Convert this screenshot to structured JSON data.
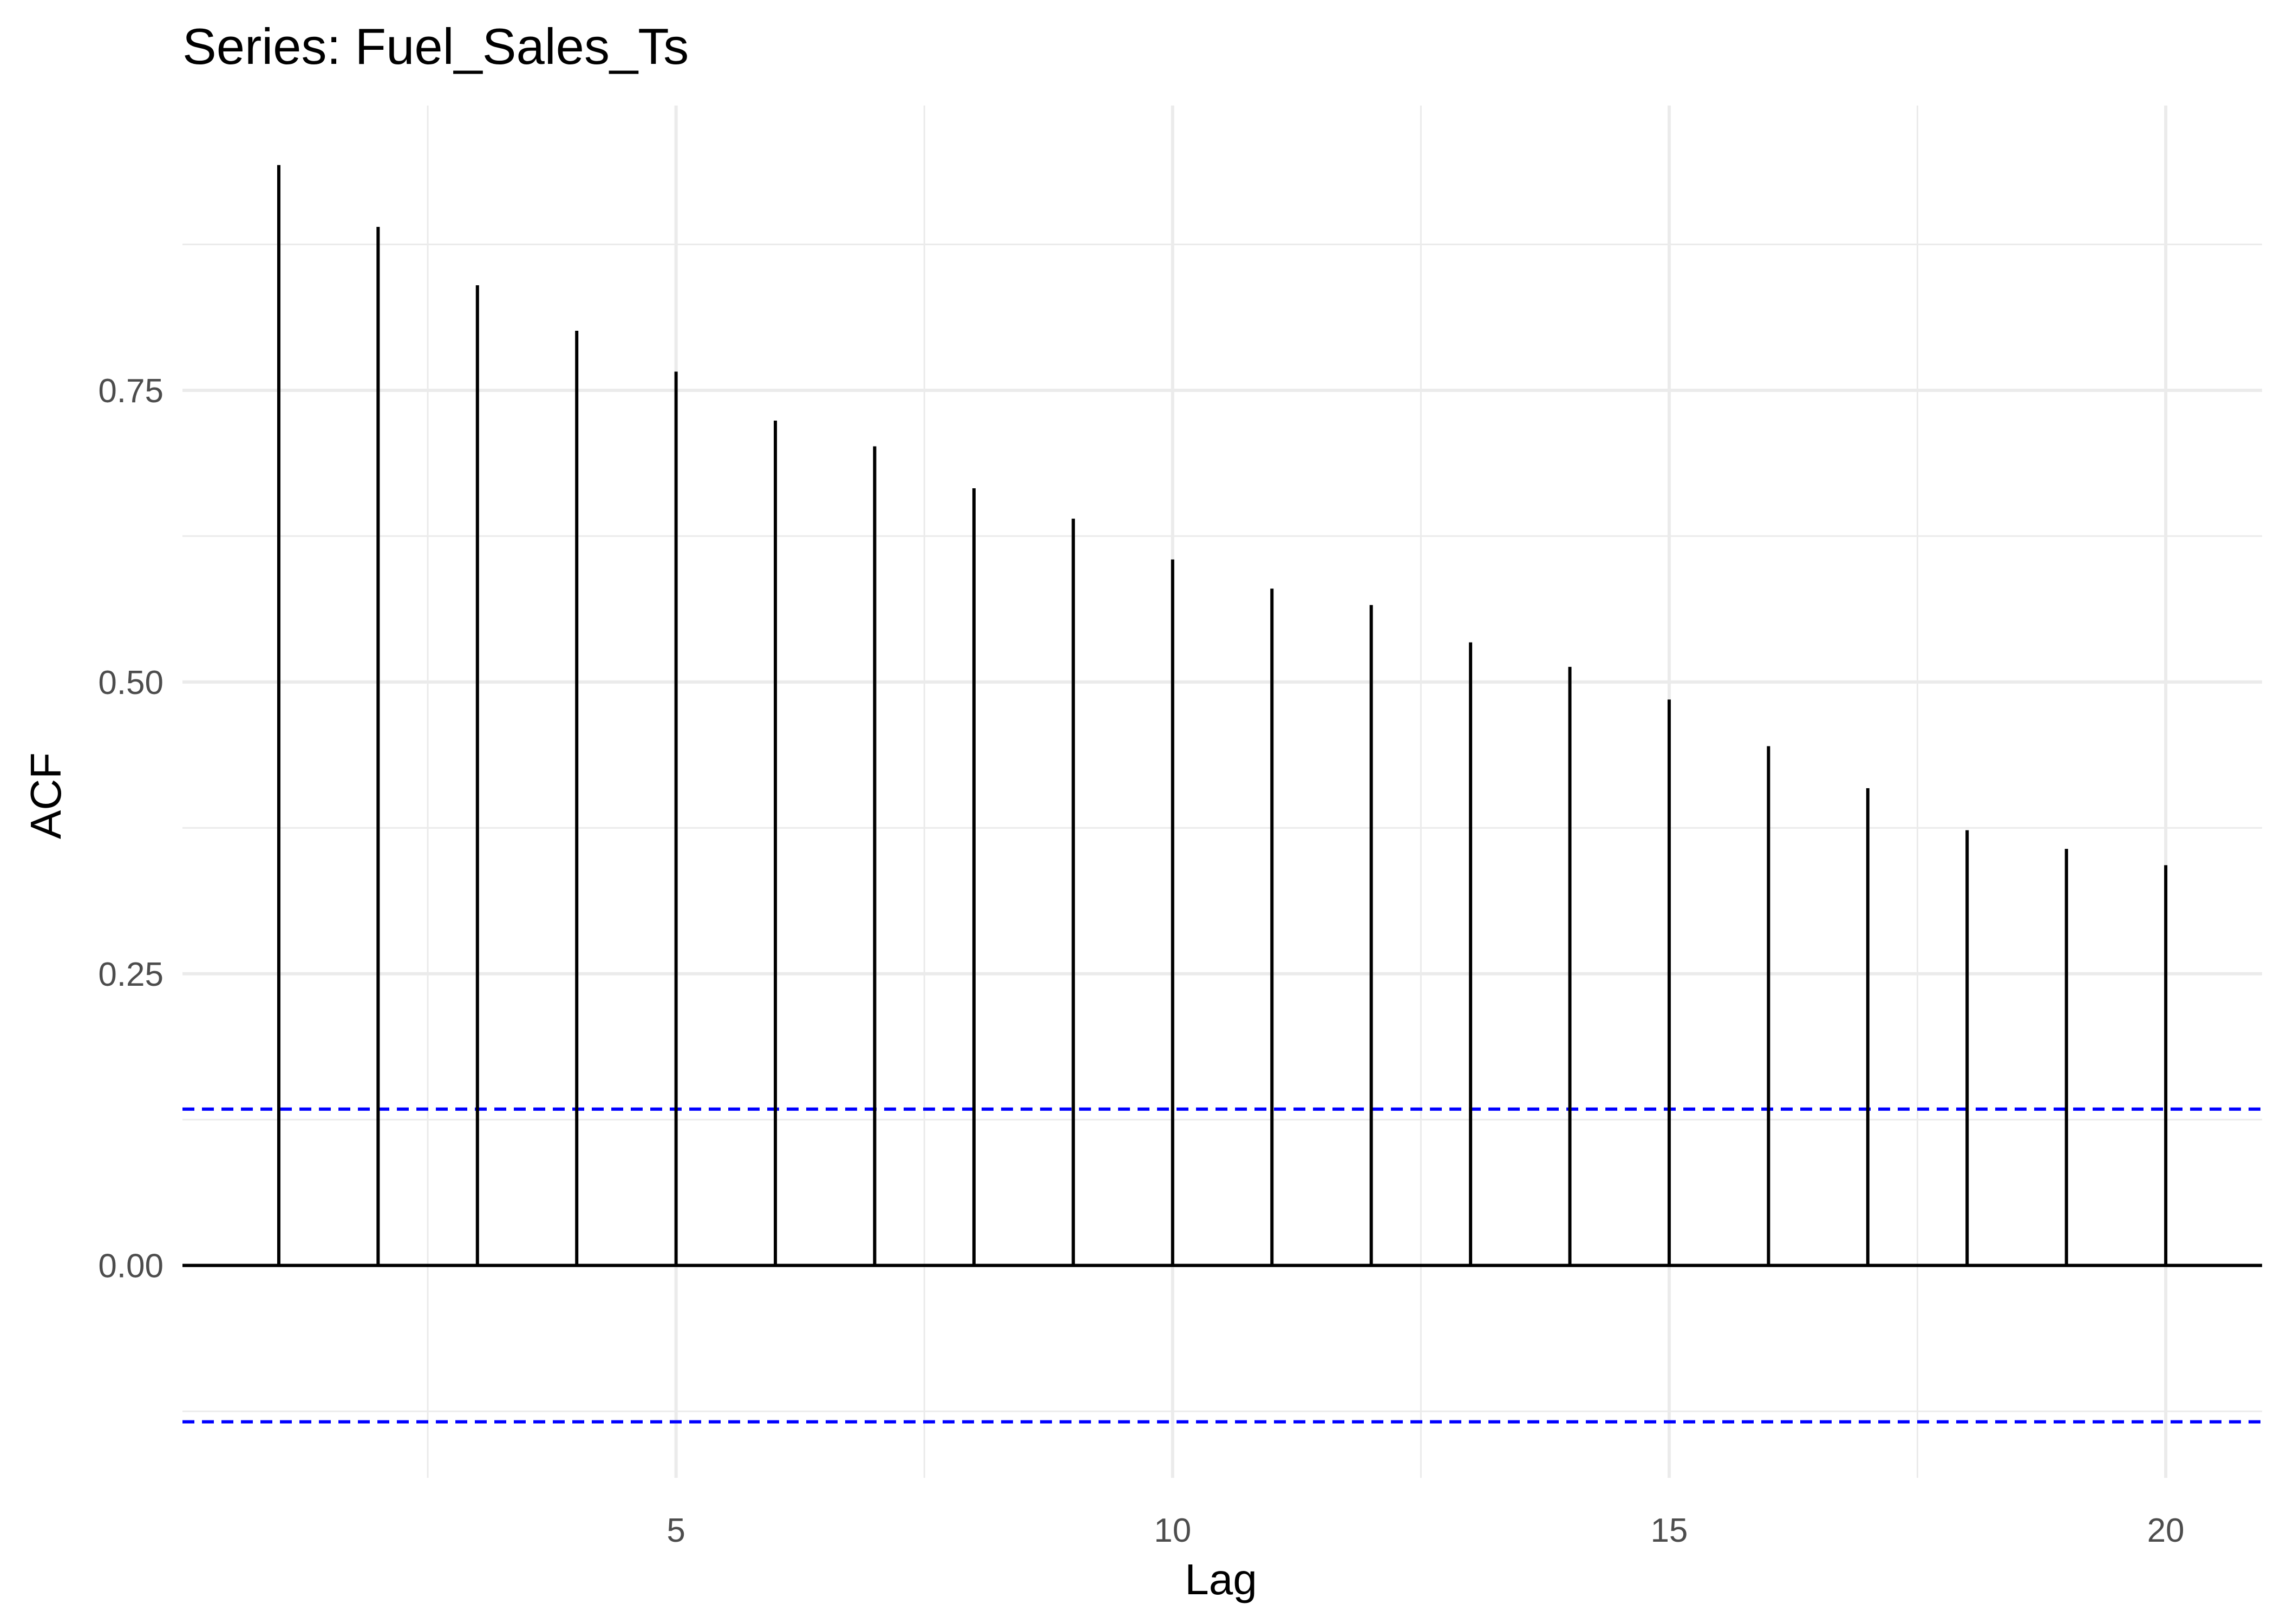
{
  "chart_data": {
    "type": "bar",
    "title": "Series: Fuel_Sales_Ts",
    "xlabel": "Lag",
    "ylabel": "ACF",
    "x": [
      1,
      2,
      3,
      4,
      5,
      6,
      7,
      8,
      9,
      10,
      11,
      12,
      13,
      14,
      15,
      16,
      17,
      18,
      19,
      20
    ],
    "values": [
      0.943,
      0.89,
      0.84,
      0.801,
      0.766,
      0.724,
      0.702,
      0.666,
      0.64,
      0.605,
      0.58,
      0.566,
      0.534,
      0.513,
      0.485,
      0.445,
      0.409,
      0.373,
      0.357,
      0.343
    ],
    "ci": [
      -0.134,
      0.134
    ],
    "xlim": [
      0.03,
      20.97
    ],
    "ylim": [
      -0.182,
      0.994
    ],
    "x_ticks": [
      5,
      10,
      15,
      20
    ],
    "x_tick_labels": [
      "5",
      "10",
      "15",
      "20"
    ],
    "y_ticks": [
      0,
      0.25,
      0.5,
      0.75
    ],
    "y_tick_labels": [
      "0.00",
      "0.25",
      "0.50",
      "0.75"
    ],
    "grid": true,
    "colors": {
      "stem": "#000000",
      "ci_line": "#0000ff",
      "grid": "#ebebeb",
      "background": "#ffffff"
    }
  }
}
